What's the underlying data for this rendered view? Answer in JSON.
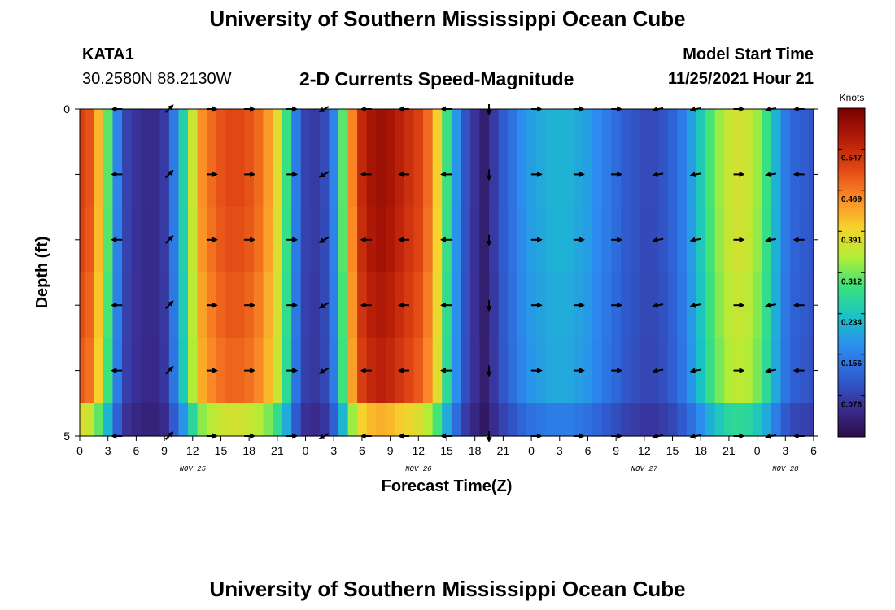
{
  "header": {
    "title": "University of Southern Mississippi Ocean Cube",
    "station_id": "KATA1",
    "station_coords": "30.2580N  88.2130W",
    "plot_title": "2-D Currents Speed-Magnitude",
    "model_start_label": "Model Start Time",
    "model_start_value": "11/25/2021 Hour 21"
  },
  "footer": {
    "title": "University of Southern Mississippi Ocean Cube"
  },
  "chart_data": {
    "type": "heatmap",
    "title": "2-D Currents Speed-Magnitude",
    "xlabel": "Forecast Time(Z)",
    "ylabel": "Depth (ft)",
    "xlim_hours": [
      0,
      78
    ],
    "ylim": [
      5,
      0
    ],
    "y_tick_labels": [
      "0",
      "5"
    ],
    "x_tick_labels": [
      "0",
      "3",
      "6",
      "9",
      "12",
      "15",
      "18",
      "21",
      "0",
      "3",
      "6",
      "9",
      "12",
      "15",
      "18",
      "21",
      "0",
      "3",
      "6",
      "9",
      "12",
      "15",
      "18",
      "21",
      "0",
      "3",
      "6"
    ],
    "date_labels": [
      {
        "label": "NOV 25",
        "hour": 12
      },
      {
        "label": "NOV 26",
        "hour": 36
      },
      {
        "label": "NOV 27",
        "hour": 60
      },
      {
        "label": "NOV 28",
        "hour": 75
      }
    ],
    "colorbar": {
      "title": "Knots",
      "range": [
        0,
        0.625
      ],
      "tick_values": [
        0.078,
        0.156,
        0.234,
        0.312,
        0.391,
        0.469,
        0.547
      ],
      "tick_labels": [
        "0.078",
        "0.156",
        "0.234",
        "0.312",
        "0.391",
        "0.469",
        "0.547"
      ],
      "colors": [
        "#2c0c48",
        "#3a2f95",
        "#2f5fd3",
        "#2c8cf0",
        "#19c2c8",
        "#3ae27e",
        "#b0ee36",
        "#f7d22c",
        "#fc8a26",
        "#e04514",
        "#b31b08",
        "#770000"
      ]
    },
    "depth_levels": [
      0,
      1,
      2,
      3,
      4,
      5
    ],
    "time_hours": [
      0,
      1,
      2,
      3,
      4,
      5,
      6,
      7,
      8,
      9,
      10,
      11,
      12,
      13,
      14,
      15,
      16,
      17,
      18,
      19,
      20,
      21,
      22,
      23,
      24,
      25,
      26,
      27,
      28,
      29,
      30,
      31,
      32,
      33,
      34,
      35,
      36,
      37,
      38,
      39,
      40,
      41,
      42,
      43,
      44,
      45,
      46,
      47,
      48,
      49,
      50,
      51,
      52,
      53,
      54,
      55,
      56,
      57,
      58,
      59,
      60,
      61,
      62,
      63,
      64,
      65,
      66,
      67,
      68,
      69,
      70,
      71,
      72,
      73,
      74,
      75,
      76,
      77,
      78
    ],
    "speed_profile_knots": [
      0.52,
      0.5,
      0.42,
      0.3,
      0.16,
      0.08,
      0.06,
      0.05,
      0.05,
      0.07,
      0.15,
      0.25,
      0.36,
      0.45,
      0.48,
      0.5,
      0.51,
      0.51,
      0.5,
      0.48,
      0.44,
      0.38,
      0.28,
      0.15,
      0.08,
      0.07,
      0.09,
      0.16,
      0.3,
      0.46,
      0.55,
      0.58,
      0.59,
      0.58,
      0.56,
      0.54,
      0.52,
      0.48,
      0.4,
      0.28,
      0.18,
      0.1,
      0.06,
      0.03,
      0.07,
      0.11,
      0.14,
      0.17,
      0.19,
      0.2,
      0.21,
      0.21,
      0.21,
      0.2,
      0.19,
      0.17,
      0.15,
      0.13,
      0.11,
      0.1,
      0.09,
      0.09,
      0.1,
      0.12,
      0.15,
      0.19,
      0.24,
      0.29,
      0.33,
      0.36,
      0.37,
      0.36,
      0.33,
      0.28,
      0.21,
      0.15,
      0.12,
      0.11,
      0.1
    ],
    "depth_scale": [
      1.0,
      1.0,
      0.99,
      0.97,
      0.95,
      0.72
    ],
    "vector_times_hours": [
      4,
      9.5,
      14,
      18,
      22.5,
      26,
      30.5,
      34.5,
      39,
      43.5,
      48.5,
      53,
      57,
      61.5,
      65.5,
      70,
      73.5,
      76.5
    ],
    "vector_depths": [
      0,
      1,
      2,
      3,
      4,
      5
    ],
    "vector_directions_deg": [
      180,
      45,
      0,
      0,
      0,
      210,
      180,
      180,
      180,
      270,
      0,
      0,
      0,
      190,
      190,
      0,
      190,
      180
    ]
  }
}
